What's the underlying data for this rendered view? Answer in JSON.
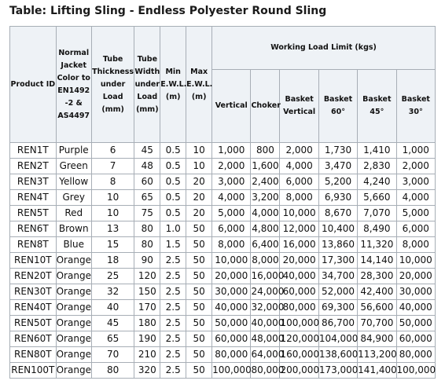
{
  "title": "Table: Lifting Sling - Endless Polyester Round Sling",
  "headers": {
    "product_id": "Product ID",
    "jacket_color": "Normal Jacket Color to EN1492 -2 & AS4497",
    "tube_thickness": "Tube Thickness under Load (mm)",
    "tube_width": "Tube Width under Load (mm)",
    "min_ewl": "Min E.W.L. (m)",
    "max_ewl": "Max E.W.L. (m)",
    "wll_group": "Working Load Limit (kgs)",
    "vertical": "Vertical",
    "choker": "Choker",
    "basket_vertical": "Basket Vertical",
    "basket_60": "Basket 60°",
    "basket_45": "Basket 45°",
    "basket_30": "Basket 30°"
  },
  "rows": [
    [
      "REN1T",
      "Purple",
      "6",
      "45",
      "0.5",
      "10",
      "1,000",
      "800",
      "2,000",
      "1,730",
      "1,410",
      "1,000"
    ],
    [
      "REN2T",
      "Green",
      "7",
      "48",
      "0.5",
      "10",
      "2,000",
      "1,600",
      "4,000",
      "3,470",
      "2,830",
      "2,000"
    ],
    [
      "REN3T",
      "Yellow",
      "8",
      "60",
      "0.5",
      "20",
      "3,000",
      "2,400",
      "6,000",
      "5,200",
      "4,240",
      "3,000"
    ],
    [
      "REN4T",
      "Grey",
      "10",
      "65",
      "0.5",
      "20",
      "4,000",
      "3,200",
      "8,000",
      "6,930",
      "5,660",
      "4,000"
    ],
    [
      "REN5T",
      "Red",
      "10",
      "75",
      "0.5",
      "20",
      "5,000",
      "4,000",
      "10,000",
      "8,670",
      "7,070",
      "5,000"
    ],
    [
      "REN6T",
      "Brown",
      "13",
      "80",
      "1.0",
      "50",
      "6,000",
      "4,800",
      "12,000",
      "10,400",
      "8,490",
      "6,000"
    ],
    [
      "REN8T",
      "Blue",
      "15",
      "80",
      "1.5",
      "50",
      "8,000",
      "6,400",
      "16,000",
      "13,860",
      "11,320",
      "8,000"
    ],
    [
      "REN10T",
      "Orange",
      "18",
      "90",
      "2.5",
      "50",
      "10,000",
      "8,000",
      "20,000",
      "17,300",
      "14,140",
      "10,000"
    ],
    [
      "REN20T",
      "Orange",
      "25",
      "120",
      "2.5",
      "50",
      "20,000",
      "16,000",
      "40,000",
      "34,700",
      "28,300",
      "20,000"
    ],
    [
      "REN30T",
      "Orange",
      "32",
      "150",
      "2.5",
      "50",
      "30,000",
      "24,000",
      "60,000",
      "52,000",
      "42,400",
      "30,000"
    ],
    [
      "REN40T",
      "Orange",
      "40",
      "170",
      "2.5",
      "50",
      "40,000",
      "32,000",
      "80,000",
      "69,300",
      "56,600",
      "40,000"
    ],
    [
      "REN50T",
      "Orange",
      "45",
      "180",
      "2.5",
      "50",
      "50,000",
      "40,000",
      "100,000",
      "86,700",
      "70,700",
      "50,000"
    ],
    [
      "REN60T",
      "Orange",
      "65",
      "190",
      "2.5",
      "50",
      "60,000",
      "48,000",
      "120,000",
      "104,000",
      "84,900",
      "60,000"
    ],
    [
      "REN80T",
      "Orange",
      "70",
      "210",
      "2.5",
      "50",
      "80,000",
      "64,000",
      "160,000",
      "138,600",
      "113,200",
      "80,000"
    ],
    [
      "REN100T",
      "Orange",
      "80",
      "320",
      "2.5",
      "50",
      "100,000",
      "80,000",
      "200,000",
      "173,000",
      "141,400",
      "100,000"
    ]
  ]
}
